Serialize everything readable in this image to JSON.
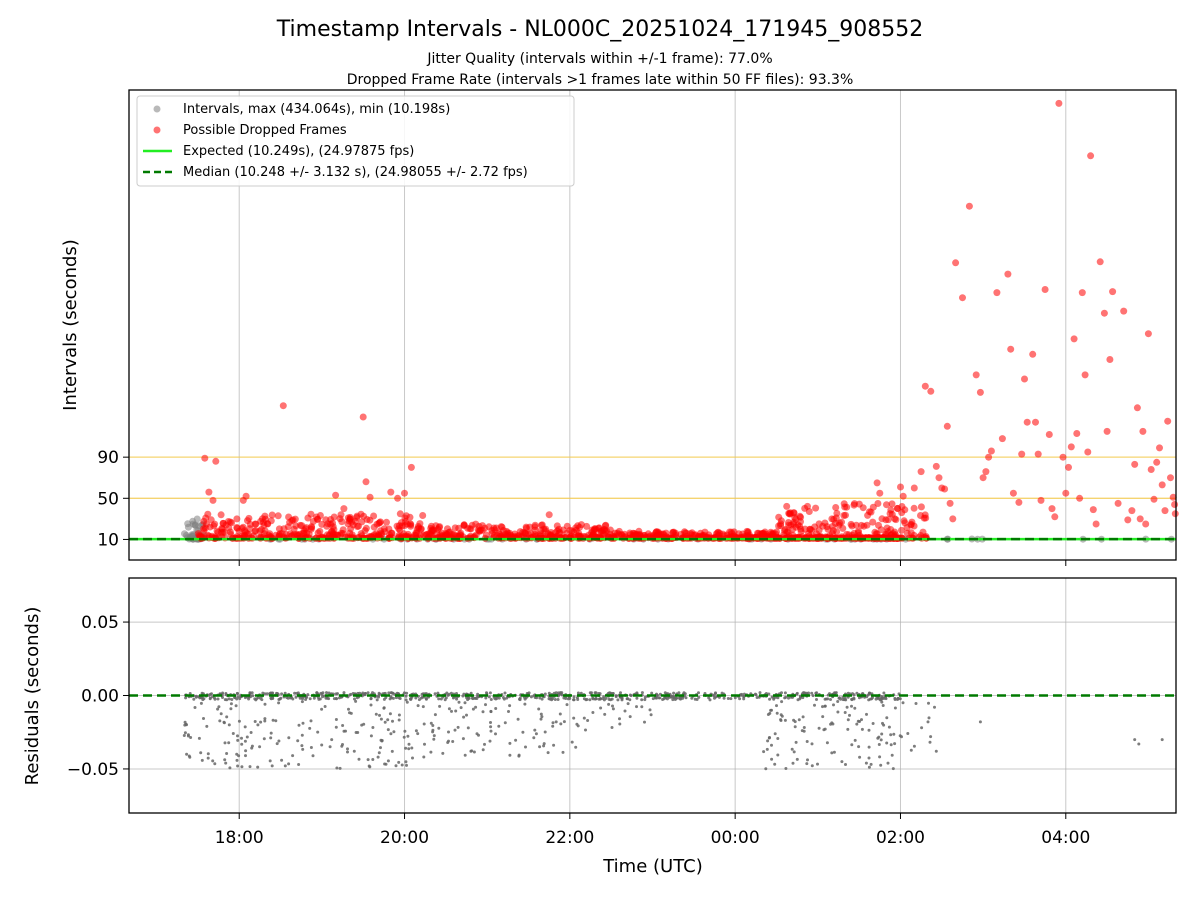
{
  "chart_data": [
    {
      "type": "scatter",
      "title": "Timestamp Intervals - NL000C_20251024_171945_908552",
      "subtitle_lines": [
        "Jitter Quality (intervals within +/-1 frame): 77.0%",
        "Dropped Frame Rate (intervals >1 frames late within 50 FF files): 93.3%"
      ],
      "xlabel": "",
      "ylabel": "Intervals (seconds)",
      "x_range": [
        "2025-10-24T16:40:00Z",
        "2025-10-25T05:20:00Z"
      ],
      "x_ticks": [
        {
          "t": "2025-10-24T18:00:00Z",
          "label": "18:00"
        },
        {
          "t": "2025-10-24T20:00:00Z",
          "label": "20:00"
        },
        {
          "t": "2025-10-24T22:00:00Z",
          "label": "22:00"
        },
        {
          "t": "2025-10-25T00:00:00Z",
          "label": "00:00"
        },
        {
          "t": "2025-10-25T02:00:00Z",
          "label": "02:00"
        },
        {
          "t": "2025-10-25T04:00:00Z",
          "label": "04:00"
        }
      ],
      "ylim": [
        -10,
        447
      ],
      "yticks": [
        10,
        50,
        90
      ],
      "grid": true,
      "legend_position": "top-left",
      "reference_lines": [
        {
          "y": 50,
          "color": "#f2c94c"
        },
        {
          "y": 90,
          "color": "#f2c94c"
        }
      ],
      "series": [
        {
          "name": "Intervals, max (434.064s), min (10.198s)",
          "color": "#808080",
          "clusters": [
            {
              "t0": "2025-10-24T17:20:00Z",
              "t1": "2025-10-24T17:35:00Z",
              "ymin": 10.2,
              "ymax": 30,
              "count": 40
            },
            {
              "t0": "2025-10-24T17:20:00Z",
              "t1": "2025-10-25T05:20:00Z",
              "ymin": 10.2,
              "ymax": 10.4,
              "count": 60
            }
          ]
        },
        {
          "name": "Possible Dropped Frames",
          "color": "#ff0000",
          "clusters": [
            {
              "t0": "2025-10-24T17:30:00Z",
              "t1": "2025-10-24T20:15:00Z",
              "ymin": 11,
              "ymax": 35,
              "count": 340
            },
            {
              "t0": "2025-10-24T20:15:00Z",
              "t1": "2025-10-24T22:30:00Z",
              "ymin": 11,
              "ymax": 25,
              "count": 280
            },
            {
              "t0": "2025-10-24T22:30:00Z",
              "t1": "2025-10-25T00:30:00Z",
              "ymin": 11,
              "ymax": 18,
              "count": 220
            },
            {
              "t0": "2025-10-25T00:30:00Z",
              "t1": "2025-10-25T02:20:00Z",
              "ymin": 11,
              "ymax": 45,
              "count": 200
            },
            {
              "t0": "2025-10-25T00:00:00Z",
              "t1": "2025-10-25T02:00:00Z",
              "ymin": 11,
              "ymax": 12,
              "count": 150
            }
          ],
          "points": [
            [
              "2025-10-24T17:35:00Z",
              89
            ],
            [
              "2025-10-24T17:43:00Z",
              86
            ],
            [
              "2025-10-24T17:38:00Z",
              56
            ],
            [
              "2025-10-24T17:41:00Z",
              48
            ],
            [
              "2025-10-24T18:05:00Z",
              52
            ],
            [
              "2025-10-24T18:03:00Z",
              48
            ],
            [
              "2025-10-24T18:32:00Z",
              140
            ],
            [
              "2025-10-24T19:10:00Z",
              53
            ],
            [
              "2025-10-24T19:16:00Z",
              40
            ],
            [
              "2025-10-24T19:30:00Z",
              129
            ],
            [
              "2025-10-24T19:32:00Z",
              66
            ],
            [
              "2025-10-24T19:35:00Z",
              51
            ],
            [
              "2025-10-24T19:50:00Z",
              56
            ],
            [
              "2025-10-24T19:55:00Z",
              50
            ],
            [
              "2025-10-24T20:00:00Z",
              55
            ],
            [
              "2025-10-24T20:05:00Z",
              80
            ],
            [
              "2025-10-24T21:45:00Z",
              34
            ],
            [
              "2025-10-25T01:13:00Z",
              41
            ],
            [
              "2025-10-25T01:43:00Z",
              65
            ],
            [
              "2025-10-25T01:45:00Z",
              55
            ],
            [
              "2025-10-25T02:00:00Z",
              61
            ],
            [
              "2025-10-25T02:02:00Z",
              52
            ],
            [
              "2025-10-25T02:10:00Z",
              60
            ],
            [
              "2025-10-25T02:15:00Z",
              76
            ],
            [
              "2025-10-25T02:18:00Z",
              159
            ],
            [
              "2025-10-25T02:22:00Z",
              154
            ],
            [
              "2025-10-25T02:26:00Z",
              81
            ],
            [
              "2025-10-25T02:28:00Z",
              70
            ],
            [
              "2025-10-25T02:30:00Z",
              60
            ],
            [
              "2025-10-25T02:32:00Z",
              59
            ],
            [
              "2025-10-25T02:34:00Z",
              120
            ],
            [
              "2025-10-25T02:36:00Z",
              45
            ],
            [
              "2025-10-25T02:38:00Z",
              30
            ],
            [
              "2025-10-25T02:40:00Z",
              279
            ],
            [
              "2025-10-25T02:45:00Z",
              245
            ],
            [
              "2025-10-25T02:50:00Z",
              334
            ],
            [
              "2025-10-25T02:55:00Z",
              170
            ],
            [
              "2025-10-25T02:58:00Z",
              153
            ],
            [
              "2025-10-25T03:00:00Z",
              70
            ],
            [
              "2025-10-25T03:02:00Z",
              76
            ],
            [
              "2025-10-25T03:04:00Z",
              90
            ],
            [
              "2025-10-25T03:06:00Z",
              96
            ],
            [
              "2025-10-25T03:10:00Z",
              250
            ],
            [
              "2025-10-25T03:14:00Z",
              108
            ],
            [
              "2025-10-25T03:18:00Z",
              268
            ],
            [
              "2025-10-25T03:20:00Z",
              195
            ],
            [
              "2025-10-25T03:22:00Z",
              55
            ],
            [
              "2025-10-25T03:26:00Z",
              46
            ],
            [
              "2025-10-25T03:28:00Z",
              93
            ],
            [
              "2025-10-25T03:30:00Z",
              166
            ],
            [
              "2025-10-25T03:32:00Z",
              124
            ],
            [
              "2025-10-25T03:36:00Z",
              190
            ],
            [
              "2025-10-25T03:38:00Z",
              124
            ],
            [
              "2025-10-25T03:40:00Z",
              93
            ],
            [
              "2025-10-25T03:42:00Z",
              48
            ],
            [
              "2025-10-25T03:45:00Z",
              253
            ],
            [
              "2025-10-25T03:48:00Z",
              112
            ],
            [
              "2025-10-25T03:50:00Z",
              40
            ],
            [
              "2025-10-25T03:52:00Z",
              32
            ],
            [
              "2025-10-25T03:55:00Z",
              434
            ],
            [
              "2025-10-25T03:58:00Z",
              90
            ],
            [
              "2025-10-25T04:00:00Z",
              55
            ],
            [
              "2025-10-25T04:02:00Z",
              80
            ],
            [
              "2025-10-25T04:04:00Z",
              100
            ],
            [
              "2025-10-25T04:06:00Z",
              205
            ],
            [
              "2025-10-25T04:08:00Z",
              113
            ],
            [
              "2025-10-25T04:10:00Z",
              50
            ],
            [
              "2025-10-25T04:12:00Z",
              250
            ],
            [
              "2025-10-25T04:14:00Z",
              170
            ],
            [
              "2025-10-25T04:16:00Z",
              95
            ],
            [
              "2025-10-25T04:18:00Z",
              383
            ],
            [
              "2025-10-25T04:20:00Z",
              39
            ],
            [
              "2025-10-25T04:22:00Z",
              25
            ],
            [
              "2025-10-25T04:25:00Z",
              280
            ],
            [
              "2025-10-25T04:28:00Z",
              230
            ],
            [
              "2025-10-25T04:30:00Z",
              115
            ],
            [
              "2025-10-25T04:32:00Z",
              185
            ],
            [
              "2025-10-25T04:34:00Z",
              251
            ],
            [
              "2025-10-25T04:38:00Z",
              45
            ],
            [
              "2025-10-25T04:42:00Z",
              232
            ],
            [
              "2025-10-25T04:45:00Z",
              29
            ],
            [
              "2025-10-25T04:48:00Z",
              38
            ],
            [
              "2025-10-25T04:50:00Z",
              83
            ],
            [
              "2025-10-25T04:52:00Z",
              138
            ],
            [
              "2025-10-25T04:54:00Z",
              30
            ],
            [
              "2025-10-25T04:56:00Z",
              115
            ],
            [
              "2025-10-25T04:58:00Z",
              25
            ],
            [
              "2025-10-25T05:00:00Z",
              210
            ],
            [
              "2025-10-25T05:02:00Z",
              78
            ],
            [
              "2025-10-25T05:04:00Z",
              49
            ],
            [
              "2025-10-25T05:06:00Z",
              85
            ],
            [
              "2025-10-25T05:08:00Z",
              99
            ],
            [
              "2025-10-25T05:10:00Z",
              63
            ],
            [
              "2025-10-25T05:12:00Z",
              38
            ],
            [
              "2025-10-25T05:14:00Z",
              125
            ],
            [
              "2025-10-25T05:16:00Z",
              70
            ],
            [
              "2025-10-25T05:18:00Z",
              51
            ],
            [
              "2025-10-25T05:19:00Z",
              44
            ],
            [
              "2025-10-25T05:19:30Z",
              35
            ]
          ]
        },
        {
          "name": "Expected (10.249s), (24.97875 fps)",
          "type": "hline",
          "y": 10.249,
          "color": "#22ee22",
          "style": "solid"
        },
        {
          "name": "Median (10.248 +/- 3.132 s), (24.98055 +/- 2.72 fps)",
          "type": "hline",
          "y": 10.248,
          "color": "#007a00",
          "style": "dashed"
        }
      ]
    },
    {
      "type": "scatter",
      "title": "",
      "xlabel": "Time (UTC)",
      "ylabel": "Residuals (seconds)",
      "x_range": [
        "2025-10-24T16:40:00Z",
        "2025-10-25T05:20:00Z"
      ],
      "x_ticks": [
        {
          "t": "2025-10-24T18:00:00Z",
          "label": "18:00"
        },
        {
          "t": "2025-10-24T20:00:00Z",
          "label": "20:00"
        },
        {
          "t": "2025-10-24T22:00:00Z",
          "label": "22:00"
        },
        {
          "t": "2025-10-25T00:00:00Z",
          "label": "00:00"
        },
        {
          "t": "2025-10-25T02:00:00Z",
          "label": "02:00"
        },
        {
          "t": "2025-10-25T04:00:00Z",
          "label": "04:00"
        }
      ],
      "ylim": [
        -0.08,
        0.08
      ],
      "yticks": [
        0.05,
        0.0,
        -0.05
      ],
      "ytick_labels": [
        "0.05",
        "0.00",
        "−0.05"
      ],
      "grid": true,
      "series": [
        {
          "color": "#666666",
          "clusters": [
            {
              "t0": "2025-10-24T17:20:00Z",
              "t1": "2025-10-25T02:00:00Z",
              "ymin": -0.003,
              "ymax": 0.002,
              "count": 700
            },
            {
              "t0": "2025-10-24T17:20:00Z",
              "t1": "2025-10-24T20:10:00Z",
              "ymin": -0.05,
              "ymax": -0.004,
              "count": 170
            },
            {
              "t0": "2025-10-24T20:10:00Z",
              "t1": "2025-10-24T22:10:00Z",
              "ymin": -0.042,
              "ymax": -0.004,
              "count": 90
            },
            {
              "t0": "2025-10-24T22:10:00Z",
              "t1": "2025-10-24T23:00:00Z",
              "ymin": -0.025,
              "ymax": -0.004,
              "count": 20
            },
            {
              "t0": "2025-10-25T00:20:00Z",
              "t1": "2025-10-25T02:00:00Z",
              "ymin": -0.05,
              "ymax": -0.004,
              "count": 110
            },
            {
              "t0": "2025-10-25T02:00:00Z",
              "t1": "2025-10-25T02:25:00Z",
              "ymin": -0.038,
              "ymax": -0.004,
              "count": 12
            }
          ],
          "points": [
            [
              "2025-10-25T02:58:00Z",
              -0.018
            ],
            [
              "2025-10-25T04:50:00Z",
              -0.03
            ],
            [
              "2025-10-25T04:53:00Z",
              -0.033
            ],
            [
              "2025-10-25T05:10:00Z",
              -0.03
            ],
            [
              "2025-10-25T02:26:00Z",
              -0.038
            ],
            [
              "2025-10-25T02:20:00Z",
              -0.018
            ]
          ]
        },
        {
          "type": "hline",
          "y": 0,
          "color": "#007a00",
          "style": "dashed"
        }
      ]
    }
  ]
}
